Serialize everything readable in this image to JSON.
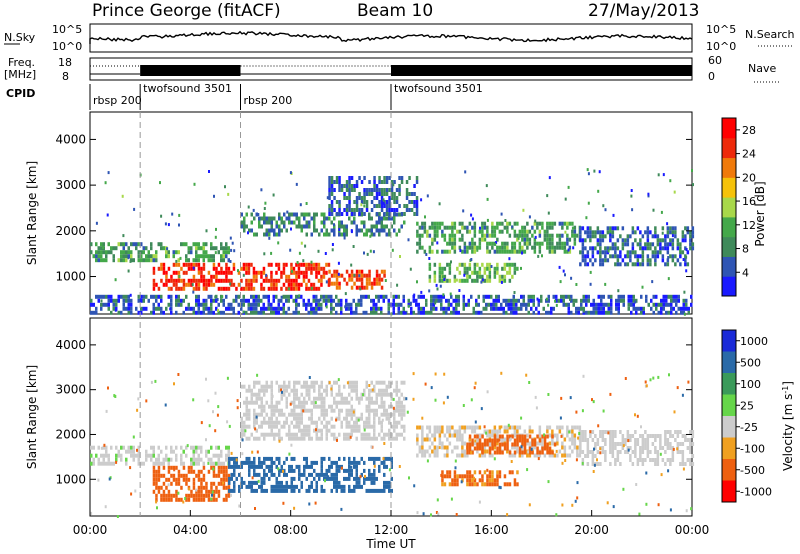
{
  "header": {
    "station": "Prince George (fitACF)",
    "beam": "Beam 10",
    "date": "27/May/2013"
  },
  "top_panels": {
    "nsky_label": "N.Sky",
    "nsky_ticks": [
      "10^5",
      "10^0"
    ],
    "nsearch_label": "N.Search",
    "nsearch_ticks": [
      "10^5",
      "10^0"
    ],
    "freq_label_line1": "Freq.",
    "freq_label_line2": "[MHz]",
    "freq_ticks": [
      "18",
      "8"
    ],
    "nave_label": "Nave",
    "nave_ticks": [
      "60",
      "0"
    ],
    "cpid_label": "CPID"
  },
  "chart_data": {
    "type": "heatmap",
    "x_axis": {
      "label": "Time UT",
      "ticks": [
        "00:00",
        "04:00",
        "08:00",
        "12:00",
        "16:00",
        "20:00",
        "00:00"
      ],
      "range_hours": [
        0,
        24
      ]
    },
    "y_axis": {
      "label": "Slant Range [km]",
      "ticks": [
        "1000",
        "2000",
        "3000",
        "4000"
      ],
      "range_km": [
        180,
        4600
      ]
    },
    "modes": [
      {
        "label": "rbsp 200",
        "start_hour": 0,
        "end_hour": 2
      },
      {
        "label": "twofsound 3501",
        "start_hour": 2,
        "end_hour": 6
      },
      {
        "label": "rbsp 200",
        "start_hour": 6,
        "end_hour": 12
      },
      {
        "label": "twofsound 3501",
        "start_hour": 12,
        "end_hour": 24
      }
    ],
    "power_colorbar": {
      "label": "Power [dB]",
      "ticks": [
        "28",
        "24",
        "20",
        "16",
        "12",
        "8",
        "4"
      ],
      "range": [
        0,
        30
      ],
      "colors": [
        "#1a1aff",
        "#2f55b4",
        "#3f8a5a",
        "#44a84a",
        "#a8d84a",
        "#f5c20a",
        "#f07a0a",
        "#ee2a0a",
        "#ff0000"
      ]
    },
    "velocity_colorbar": {
      "label_prefix": "Velocity  [m s",
      "label_exp": "-1",
      "label_suffix": "]",
      "ticks": [
        "1000",
        "500",
        "100",
        "25",
        "-25",
        "-100",
        "-500",
        "-1000"
      ],
      "colors": [
        "#1a2ad8",
        "#2a6aa8",
        "#3a9a5a",
        "#66d64a",
        "#cccccc",
        "#f0a020",
        "#ee6010",
        "#ff0000"
      ]
    },
    "power_features": [
      {
        "t0": 0.0,
        "t1": 5.5,
        "r0": 1350,
        "r1": 1750,
        "level": 10
      },
      {
        "t0": 2.5,
        "t1": 9.5,
        "r0": 750,
        "r1": 1300,
        "level": 26
      },
      {
        "t0": 9.5,
        "t1": 11.7,
        "r0": 750,
        "r1": 1150,
        "level": 24
      },
      {
        "t0": 6.0,
        "t1": 12.5,
        "r0": 1900,
        "r1": 2400,
        "level": 8
      },
      {
        "t0": 9.5,
        "t1": 13.0,
        "r0": 2400,
        "r1": 3200,
        "level": 6
      },
      {
        "t0": 13.0,
        "t1": 19.5,
        "r0": 1500,
        "r1": 2200,
        "level": 10
      },
      {
        "t0": 13.5,
        "t1": 17.0,
        "r0": 900,
        "r1": 1300,
        "level": 12
      },
      {
        "t0": 19.5,
        "t1": 24.0,
        "r0": 1300,
        "r1": 2100,
        "level": 6
      },
      {
        "t0": 0.0,
        "t1": 24.0,
        "r0": 200,
        "r1": 600,
        "level": 5
      }
    ],
    "velocity_features": [
      {
        "t0": 0.0,
        "t1": 5.5,
        "r0": 1350,
        "r1": 1750,
        "v": 10
      },
      {
        "t0": 2.5,
        "t1": 5.5,
        "r0": 500,
        "r1": 1300,
        "v": -150
      },
      {
        "t0": 5.5,
        "t1": 12.0,
        "r0": 750,
        "r1": 1500,
        "v": 120
      },
      {
        "t0": 6.0,
        "t1": 12.5,
        "r0": 1900,
        "r1": 3200,
        "v": 5
      },
      {
        "t0": 13.0,
        "t1": 19.5,
        "r0": 1500,
        "r1": 2200,
        "v": -15
      },
      {
        "t0": 15.0,
        "t1": 18.5,
        "r0": 1600,
        "r1": 2000,
        "v": -200
      },
      {
        "t0": 14.0,
        "t1": 17.0,
        "r0": 900,
        "r1": 1200,
        "v": -110
      },
      {
        "t0": 19.5,
        "t1": 24.0,
        "r0": 1300,
        "r1": 2100,
        "v": 5
      }
    ]
  }
}
